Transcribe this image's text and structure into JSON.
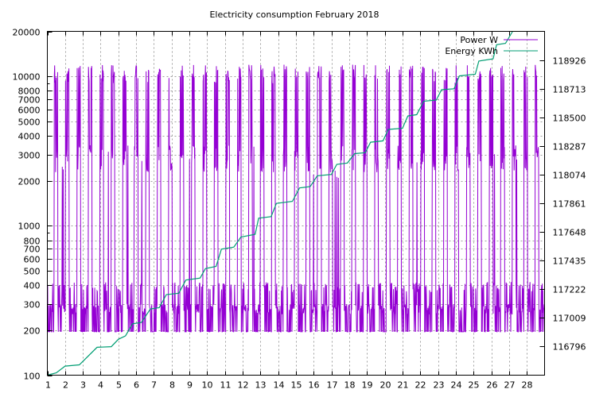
{
  "chart_data": {
    "type": "line",
    "title": "Electricity consumption February 2018",
    "xlabel": "",
    "ylabel": "",
    "grid": true,
    "legend_position": "top-right",
    "x_ticks": [
      "1",
      "2",
      "3",
      "4",
      "5",
      "6",
      "7",
      "8",
      "9",
      "10",
      "11",
      "12",
      "13",
      "14",
      "15",
      "16",
      "17",
      "18",
      "19",
      "20",
      "21",
      "22",
      "23",
      "24",
      "25",
      "26",
      "27",
      "28"
    ],
    "xlim": [
      1,
      29
    ],
    "y_axis": {
      "scale": "log",
      "ylim": [
        100,
        20000
      ],
      "ticks": [
        100,
        200,
        300,
        400,
        500,
        600,
        700,
        800,
        1000,
        2000,
        3000,
        4000,
        5000,
        6000,
        7000,
        8000,
        10000,
        20000
      ]
    },
    "y2_axis": {
      "scale": "linear",
      "ylim": [
        116583,
        119139
      ],
      "ticks": [
        116796,
        117009,
        117222,
        117435,
        117648,
        117861,
        118074,
        118287,
        118500,
        118713,
        118926
      ]
    },
    "series": [
      {
        "name": "Power W",
        "color": "#9400d3",
        "axis": "y",
        "description_levels": {
          "base_low": 195,
          "base_high": 300,
          "spike_high": 12000,
          "peak_low": 2400
        }
      },
      {
        "name": "Energy KWh",
        "color": "#009e73",
        "axis": "y2",
        "points": [
          [
            1.0,
            116583
          ],
          [
            1.5,
            116600
          ],
          [
            2.0,
            116650
          ],
          [
            2.8,
            116660
          ],
          [
            3.8,
            116790
          ],
          [
            4.6,
            116795
          ],
          [
            5.0,
            116850
          ],
          [
            5.4,
            116875
          ],
          [
            5.8,
            116965
          ],
          [
            6.3,
            116975
          ],
          [
            6.8,
            117075
          ],
          [
            7.3,
            117085
          ],
          [
            7.7,
            117182
          ],
          [
            8.4,
            117192
          ],
          [
            8.8,
            117290
          ],
          [
            9.6,
            117305
          ],
          [
            9.9,
            117375
          ],
          [
            10.5,
            117392
          ],
          [
            10.8,
            117520
          ],
          [
            11.5,
            117535
          ],
          [
            11.9,
            117610
          ],
          [
            12.7,
            117630
          ],
          [
            12.9,
            117750
          ],
          [
            13.6,
            117762
          ],
          [
            13.9,
            117860
          ],
          [
            14.8,
            117875
          ],
          [
            15.2,
            117975
          ],
          [
            15.8,
            117985
          ],
          [
            16.2,
            118065
          ],
          [
            17.0,
            118075
          ],
          [
            17.3,
            118150
          ],
          [
            17.9,
            118160
          ],
          [
            18.3,
            118230
          ],
          [
            18.9,
            118237
          ],
          [
            19.2,
            118315
          ],
          [
            19.9,
            118325
          ],
          [
            20.2,
            118410
          ],
          [
            21.0,
            118418
          ],
          [
            21.3,
            118510
          ],
          [
            21.8,
            118520
          ],
          [
            22.2,
            118620
          ],
          [
            22.9,
            118628
          ],
          [
            23.2,
            118705
          ],
          [
            23.9,
            118712
          ],
          [
            24.2,
            118808
          ],
          [
            25.1,
            118820
          ],
          [
            25.3,
            118918
          ],
          [
            26.1,
            118935
          ],
          [
            26.3,
            119040
          ],
          [
            26.8,
            119050
          ],
          [
            27.2,
            119139
          ]
        ]
      }
    ]
  }
}
